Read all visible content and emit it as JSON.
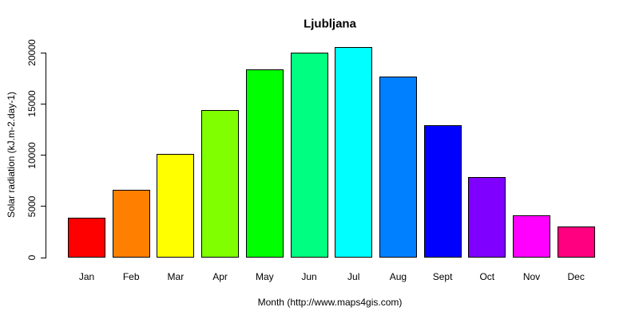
{
  "page": {
    "background": "#ffffff"
  },
  "chart_data": {
    "type": "bar",
    "title": "Ljubljana",
    "xlabel": "Month (http://www.maps4gis.com)",
    "ylabel": "Solar radiation (kJ.m-2.day-1)",
    "categories": [
      "Jan",
      "Feb",
      "Mar",
      "Apr",
      "May",
      "Jun",
      "Jul",
      "Aug",
      "Sept",
      "Oct",
      "Nov",
      "Dec"
    ],
    "values": [
      3900,
      6650,
      10150,
      14400,
      18400,
      20000,
      20550,
      17650,
      12900,
      7900,
      4150,
      3000
    ],
    "bar_colors": [
      "#FF0000",
      "#FF8000",
      "#FFFF00",
      "#80FF00",
      "#00FF00",
      "#00FF80",
      "#00FFFF",
      "#0080FF",
      "#0000FF",
      "#8000FF",
      "#FF00FF",
      "#FF0080"
    ],
    "bar_border_color": "#000000",
    "axis_color": "#000000",
    "text_color": "#000000",
    "yticks": [
      0,
      5000,
      10000,
      15000,
      20000
    ],
    "ylim": [
      0,
      20600
    ],
    "grid": false,
    "legend": "none"
  }
}
